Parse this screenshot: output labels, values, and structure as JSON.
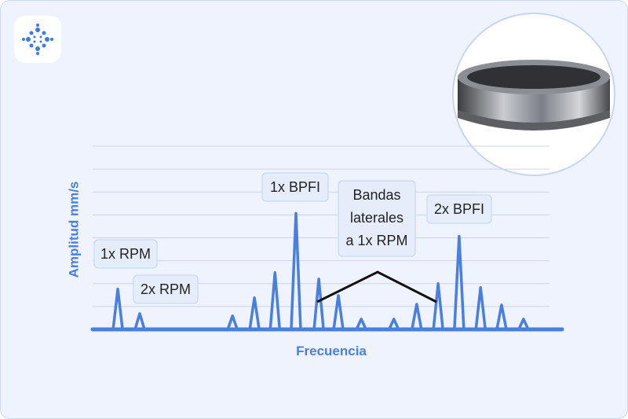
{
  "chart_data": {
    "type": "spectrum",
    "y_label": "Amplitud mm/s",
    "x_label": "Frecuencia",
    "color": "#4a7fe0",
    "grid": true,
    "xlim": [
      0,
      100
    ],
    "ylim": [
      0,
      8
    ],
    "x": [
      5.4,
      10.1,
      30,
      34.7,
      39.1,
      43.6,
      48.5,
      52.7,
      57.6,
      64.6,
      69.5,
      74.1,
      78.6,
      83.2,
      87.7,
      92.4
    ],
    "values": [
      1.76,
      0.69,
      0.59,
      1.38,
      2.48,
      5.07,
      2.2,
      1.48,
      0.45,
      0.45,
      1.1,
      2.0,
      4.07,
      1.83,
      1.07,
      0.45
    ],
    "annotations": [
      "1x RPM",
      "2x RPM",
      "1x BPFI",
      "Bandas laterales a 1x RPM",
      "2x BPFI"
    ]
  }
}
